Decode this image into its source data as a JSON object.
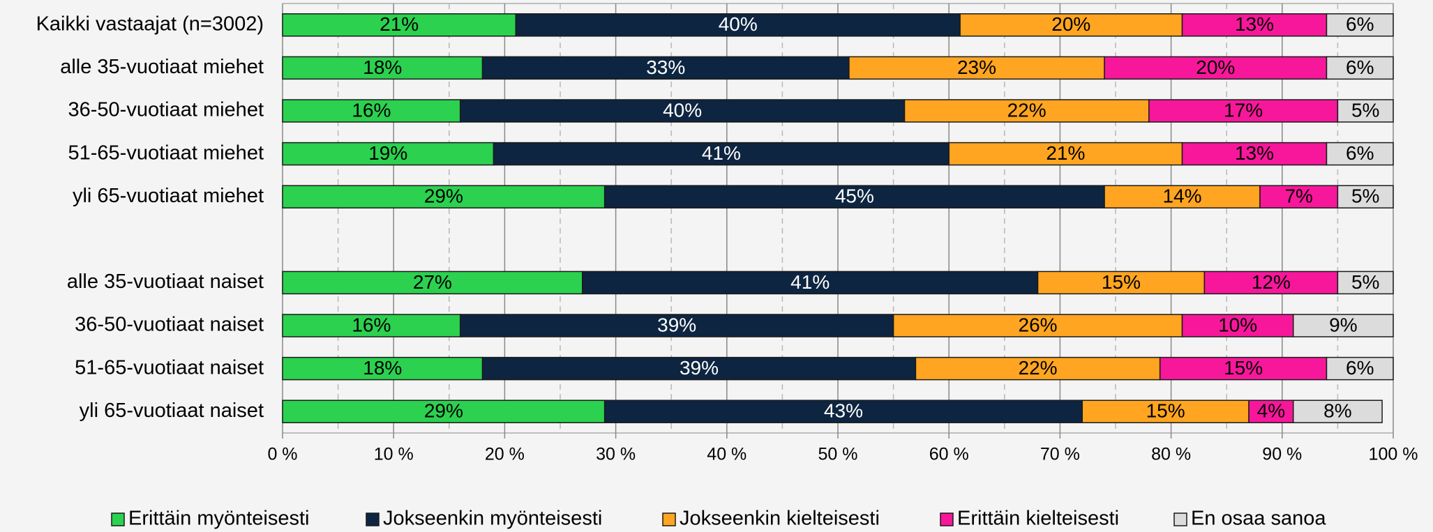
{
  "chart_data": {
    "type": "stacked_barh",
    "categories": [
      "Kaikki vastaajat (n=3002)",
      "alle 35-vuotiaat miehet",
      "36-50-vuotiaat miehet",
      "51-65-vuotiaat miehet",
      "yli 65-vuotiaat miehet",
      null,
      "alle 35-vuotiaat naiset",
      "36-50-vuotiaat naiset",
      "51-65-vuotiaat naiset",
      "yli 65-vuotiaat naiset"
    ],
    "series": [
      {
        "name": "Erittäin myönteisesti",
        "color": "#2bd14f",
        "label_color": "#000000",
        "values": [
          21,
          18,
          16,
          19,
          29,
          null,
          27,
          16,
          18,
          29
        ],
        "value_labels": [
          "21%",
          "18%",
          "16%",
          "19%",
          "29%",
          null,
          "27%",
          "16%",
          "18%",
          "29%"
        ]
      },
      {
        "name": "Jokseenkin myönteisesti",
        "color": "#0d2540",
        "label_color": "#ffffff",
        "values": [
          40,
          33,
          40,
          41,
          45,
          null,
          41,
          39,
          39,
          43
        ],
        "value_labels": [
          "40%",
          "33%",
          "40%",
          "41%",
          "45%",
          null,
          "41%",
          "39%",
          "39%",
          "43%"
        ]
      },
      {
        "name": "Jokseenkin kielteisesti",
        "color": "#ffa521",
        "label_color": "#000000",
        "values": [
          20,
          23,
          22,
          21,
          14,
          null,
          15,
          26,
          22,
          15
        ],
        "value_labels": [
          "20%",
          "23%",
          "22%",
          "21%",
          "14%",
          null,
          "15%",
          "26%",
          "22%",
          "15%"
        ]
      },
      {
        "name": "Erittäin kielteisesti",
        "color": "#f7179b",
        "label_color": "#000000",
        "values": [
          13,
          20,
          17,
          13,
          7,
          null,
          12,
          10,
          15,
          4
        ],
        "value_labels": [
          "13%",
          "20%",
          "17%",
          "13%",
          "7%",
          null,
          "12%",
          "10%",
          "15%",
          "4%"
        ]
      },
      {
        "name": "En osaa sanoa",
        "color": "#dcdcdc",
        "label_color": "#000000",
        "values": [
          6,
          6,
          5,
          6,
          5,
          null,
          5,
          9,
          6,
          8
        ],
        "value_labels": [
          "6%",
          "6%",
          "5%",
          "6%",
          "5%",
          null,
          "5%",
          "9%",
          "6%",
          "8%"
        ]
      }
    ],
    "xlim": [
      0,
      100
    ],
    "xticks": [
      {
        "value": 0,
        "label": "0 %"
      },
      {
        "value": 10,
        "label": "10 %"
      },
      {
        "value": 20,
        "label": "20 %"
      },
      {
        "value": 30,
        "label": "30 %"
      },
      {
        "value": 40,
        "label": "40 %"
      },
      {
        "value": 50,
        "label": "50 %"
      },
      {
        "value": 60,
        "label": "60 %"
      },
      {
        "value": 70,
        "label": "70 %"
      },
      {
        "value": 80,
        "label": "80 %"
      },
      {
        "value": 90,
        "label": "90 %"
      },
      {
        "value": 100,
        "label": "100 %"
      }
    ],
    "xticks_minor": [
      5,
      15,
      25,
      35,
      45,
      55,
      65,
      75,
      85,
      95
    ],
    "grid": true,
    "legend": "bottom"
  }
}
